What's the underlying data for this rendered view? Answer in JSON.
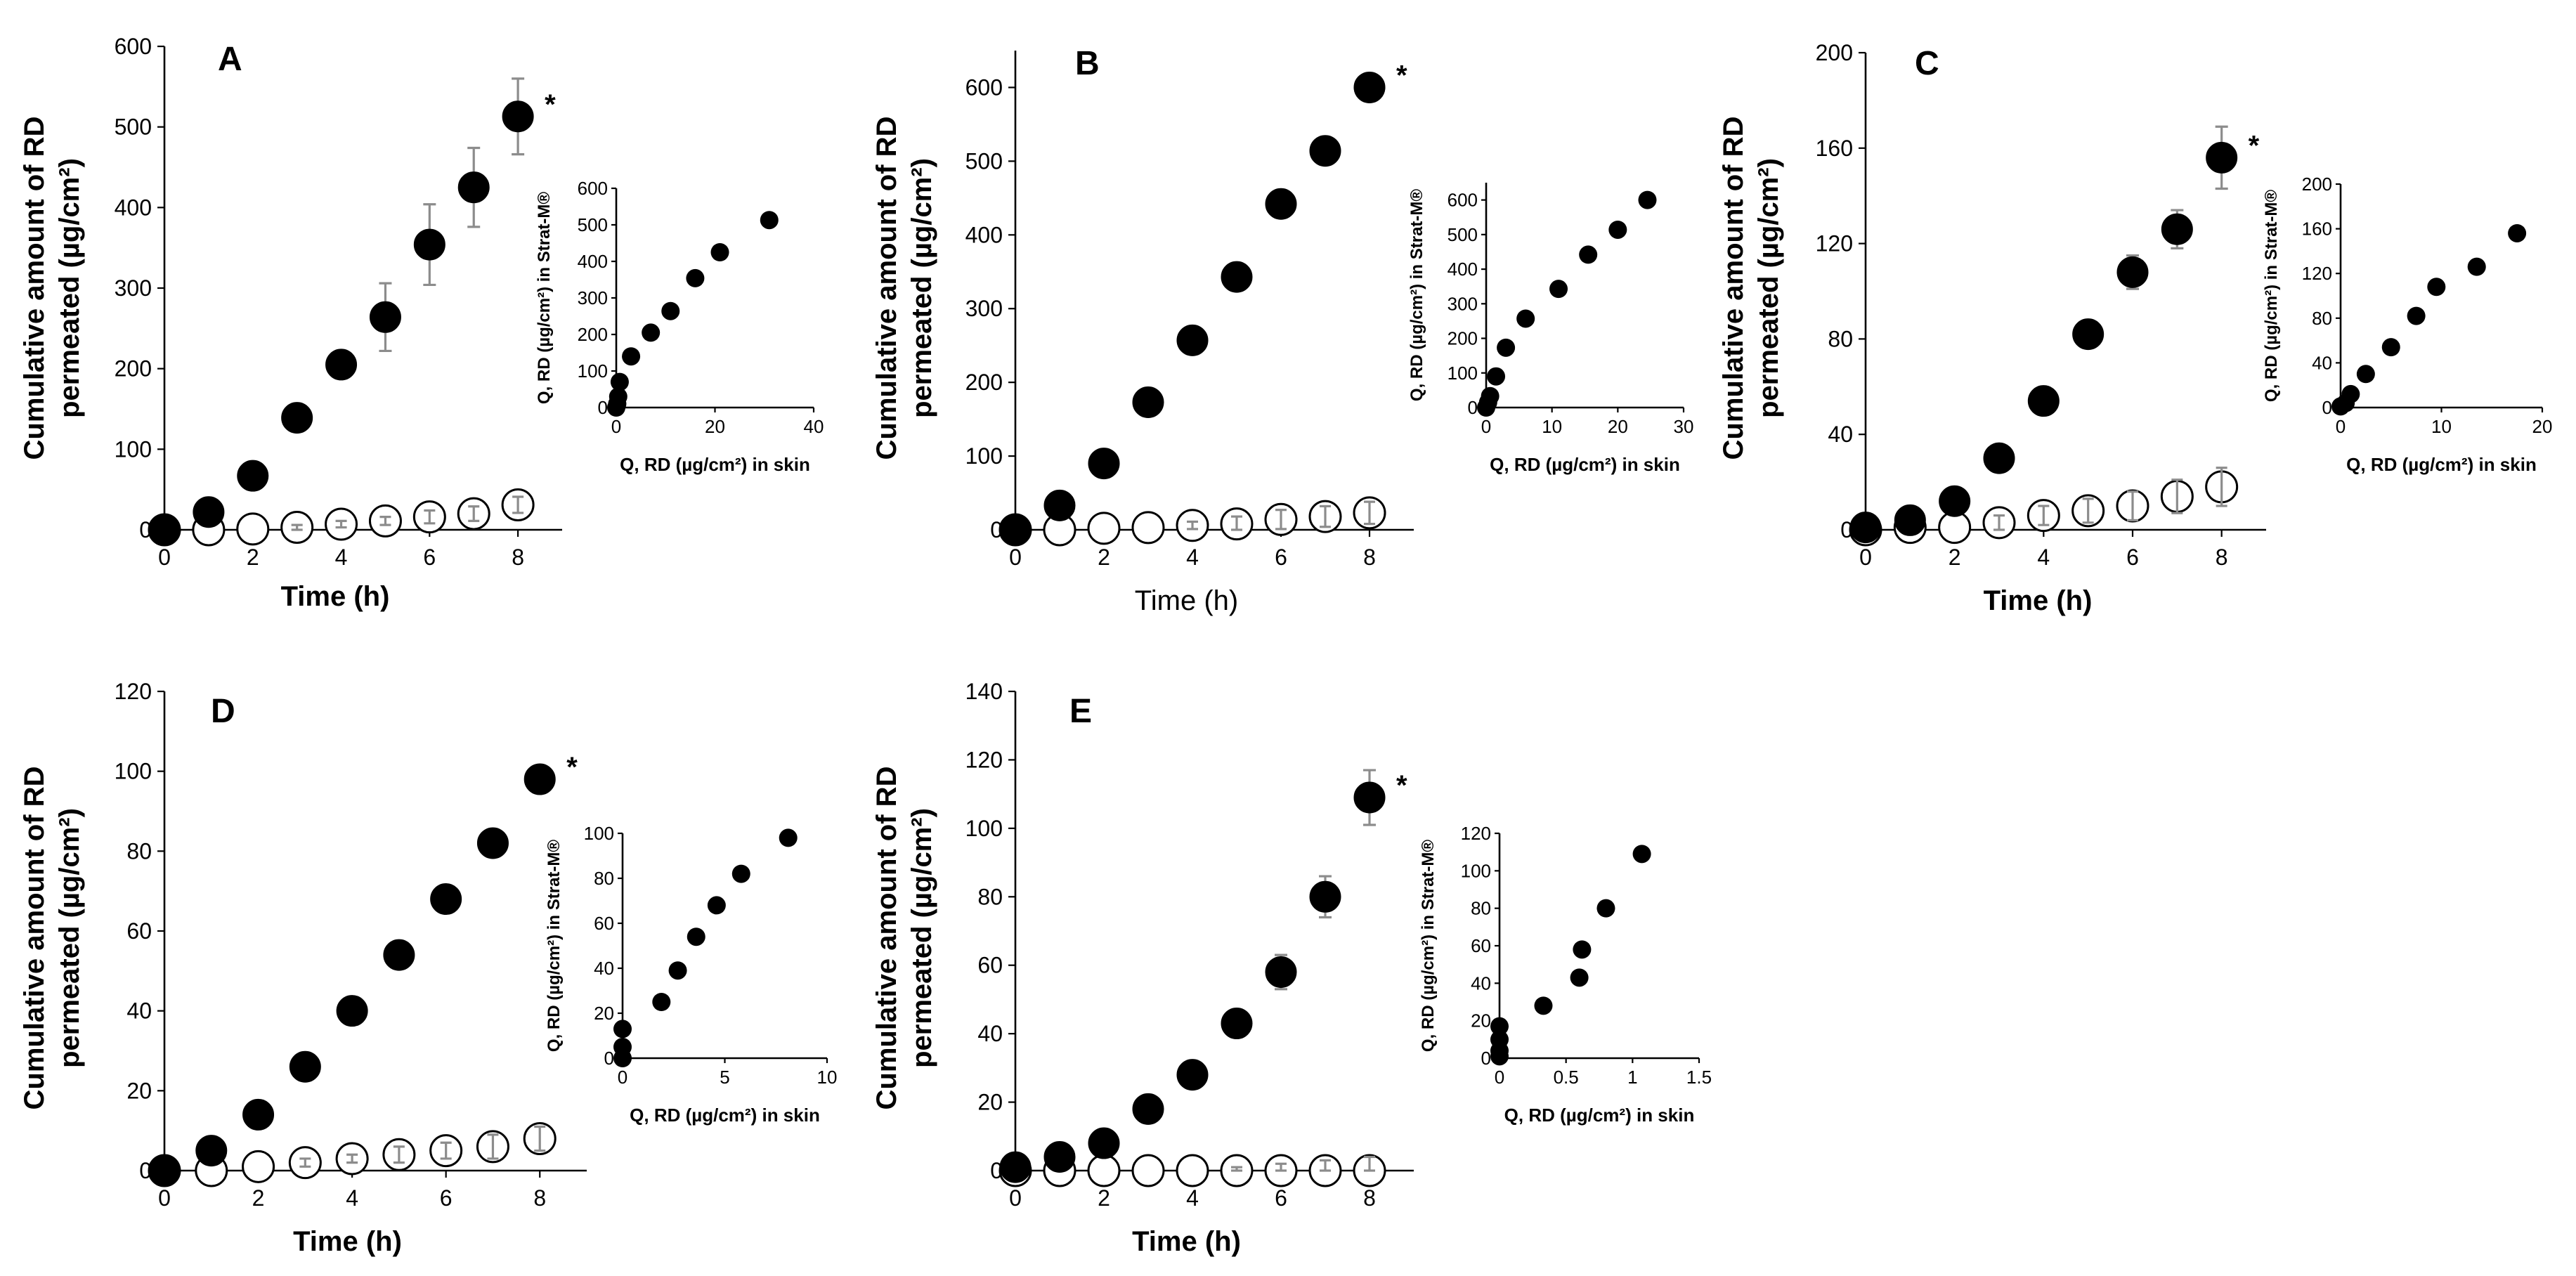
{
  "chart_data": [
    {
      "type": "scatter",
      "panel_label": "A",
      "ylabel_line1": "Cumulative amount of RD",
      "ylabel_line2": "permeated (µg/cm²)",
      "xlabel": "Time (h)",
      "xlabel_bold": true,
      "xlim": [
        0,
        9
      ],
      "ylim": [
        0,
        600
      ],
      "xticks": [
        0,
        2,
        4,
        6,
        8
      ],
      "yticks": [
        0,
        100,
        200,
        300,
        400,
        500,
        600
      ],
      "annotation": "*",
      "series": [
        {
          "name": "filled",
          "x": [
            0,
            1,
            2,
            3,
            4,
            5,
            6,
            7,
            8
          ],
          "y": [
            0,
            22,
            67,
            139,
            205,
            264,
            354,
            425,
            513
          ],
          "err": [
            0,
            3,
            4,
            5,
            13,
            42,
            50,
            49,
            47
          ]
        },
        {
          "name": "open",
          "x": [
            0,
            1,
            2,
            3,
            4,
            5,
            6,
            7,
            8
          ],
          "y": [
            0,
            0,
            1,
            3,
            7,
            11,
            16,
            20,
            31
          ],
          "err": [
            0,
            0,
            0,
            3,
            4,
            5,
            8,
            9,
            10
          ]
        }
      ],
      "inset": {
        "xlabel": "Q, RD (µg/cm²) in skin",
        "ylabel": "Q, RD (µg/cm²) in Strat-M®",
        "xlim": [
          0,
          40
        ],
        "ylim": [
          0,
          600
        ],
        "xticks": [
          0,
          20,
          40
        ],
        "yticks": [
          0,
          100,
          200,
          300,
          400,
          500,
          600
        ],
        "x": [
          0,
          0.2,
          0.4,
          0.7,
          3,
          7,
          11,
          16,
          21,
          31
        ],
        "y": [
          0,
          10,
          30,
          70,
          140,
          205,
          264,
          354,
          425,
          513
        ]
      }
    },
    {
      "type": "scatter",
      "panel_label": "B",
      "ylabel_line1": "Cumulative amount of RD",
      "ylabel_line2": "permeated (µg/cm²)",
      "xlabel": "Time (h)",
      "xlabel_bold": false,
      "xlim": [
        0,
        9
      ],
      "ylim": [
        0,
        650
      ],
      "xticks": [
        0,
        2,
        4,
        6,
        8
      ],
      "yticks": [
        0,
        100,
        200,
        300,
        400,
        500,
        600
      ],
      "annotation": "*",
      "series": [
        {
          "name": "filled",
          "x": [
            0,
            1,
            2,
            3,
            4,
            5,
            6,
            7,
            8
          ],
          "y": [
            0,
            33,
            90,
            173,
            257,
            343,
            442,
            514,
            600
          ],
          "err": [
            0,
            0,
            0,
            0,
            0,
            0,
            0,
            0,
            0
          ]
        },
        {
          "name": "open",
          "x": [
            0,
            1,
            2,
            3,
            4,
            5,
            6,
            7,
            8
          ],
          "y": [
            0,
            0,
            2,
            3,
            6,
            8,
            14,
            18,
            23
          ],
          "err": [
            0,
            0,
            0,
            0,
            5,
            10,
            13,
            14,
            15
          ]
        }
      ],
      "inset": {
        "xlabel": "Q, RD (µg/cm²) in skin",
        "ylabel": "Q, RD (µg/cm²) in Strat-M®",
        "xlim": [
          0,
          30
        ],
        "ylim": [
          0,
          650
        ],
        "xticks": [
          0,
          10,
          20,
          30
        ],
        "yticks": [
          0,
          100,
          200,
          300,
          400,
          500,
          600
        ],
        "x": [
          0,
          0.3,
          0.6,
          1.5,
          3,
          6,
          11,
          15.5,
          20,
          24.5
        ],
        "y": [
          0,
          15,
          33,
          90,
          173,
          257,
          343,
          442,
          514,
          600
        ]
      }
    },
    {
      "type": "scatter",
      "panel_label": "C",
      "ylabel_line1": "Cumulative amount of RD",
      "ylabel_line2": "permeated (µg/cm²)",
      "xlabel": "Time (h)",
      "xlabel_bold": true,
      "xlim": [
        0,
        9
      ],
      "ylim": [
        0,
        200
      ],
      "xticks": [
        0,
        2,
        4,
        6,
        8
      ],
      "yticks": [
        0,
        40,
        80,
        120,
        160,
        200
      ],
      "annotation": "*",
      "series": [
        {
          "name": "filled",
          "x": [
            0,
            1,
            2,
            3,
            4,
            5,
            6,
            7,
            8
          ],
          "y": [
            1,
            4,
            12,
            30,
            54,
            82,
            108,
            126,
            156
          ],
          "err": [
            0,
            0,
            0,
            2,
            2,
            2,
            7,
            8,
            13
          ]
        },
        {
          "name": "open",
          "x": [
            0,
            1,
            2,
            3,
            4,
            5,
            6,
            7,
            8
          ],
          "y": [
            0,
            1,
            1,
            3,
            6,
            8,
            10,
            14,
            18
          ],
          "err": [
            0,
            0,
            0,
            3,
            4,
            5,
            6,
            7,
            8
          ]
        }
      ],
      "inset": {
        "xlabel": "Q, RD (µg/cm²) in skin",
        "ylabel": "Q, RD (µg/cm²) in Strat-M®",
        "xlim": [
          0,
          20
        ],
        "ylim": [
          0,
          200
        ],
        "xticks": [
          0,
          10,
          20
        ],
        "yticks": [
          0,
          40,
          80,
          120,
          160,
          200
        ],
        "x": [
          0,
          0.5,
          1,
          2.5,
          5,
          7.5,
          9.5,
          13.5,
          17.5
        ],
        "y": [
          1,
          4,
          12,
          30,
          54,
          82,
          108,
          126,
          156
        ]
      }
    },
    {
      "type": "scatter",
      "panel_label": "D",
      "ylabel_line1": "Cumulative amount of RD",
      "ylabel_line2": "permeated (µg/cm²)",
      "xlabel": "Time (h)",
      "xlabel_bold": true,
      "xlim": [
        0,
        9
      ],
      "ylim": [
        0,
        120
      ],
      "xticks": [
        0,
        2,
        4,
        6,
        8
      ],
      "yticks": [
        0,
        20,
        40,
        60,
        80,
        100,
        120
      ],
      "annotation": "*",
      "series": [
        {
          "name": "filled",
          "x": [
            0,
            1,
            2,
            3,
            4,
            5,
            6,
            7,
            8
          ],
          "y": [
            0,
            5,
            14,
            26,
            40,
            54,
            68,
            82,
            98
          ],
          "err": [
            0,
            0,
            0,
            0,
            0,
            0,
            0,
            3,
            2
          ]
        },
        {
          "name": "open",
          "x": [
            0,
            1,
            2,
            3,
            4,
            5,
            6,
            7,
            8
          ],
          "y": [
            0,
            0,
            1,
            2,
            3,
            4,
            5,
            6,
            8
          ],
          "err": [
            0,
            0,
            0,
            1,
            1,
            2,
            2,
            3,
            3
          ]
        }
      ],
      "inset": {
        "xlabel": "Q, RD (µg/cm²) in skin",
        "ylabel": "Q, RD (µg/cm²) in Strat-M®",
        "xlim": [
          0,
          10
        ],
        "ylim": [
          0,
          100
        ],
        "xticks": [
          0,
          5,
          10
        ],
        "yticks": [
          0,
          20,
          40,
          60,
          80,
          100
        ],
        "x": [
          0,
          0,
          0,
          1.9,
          2.7,
          3.6,
          4.6,
          5.8,
          8.1
        ],
        "y": [
          0,
          5,
          13,
          25,
          39,
          54,
          68,
          82,
          98
        ]
      }
    },
    {
      "type": "scatter",
      "panel_label": "E",
      "ylabel_line1": "Cumulative amount of RD",
      "ylabel_line2": "permeated (µg/cm²)",
      "xlabel": "Time (h)",
      "xlabel_bold": true,
      "xlim": [
        0,
        9
      ],
      "ylim": [
        0,
        140
      ],
      "xticks": [
        0,
        2,
        4,
        6,
        8
      ],
      "yticks": [
        0,
        20,
        40,
        60,
        80,
        100,
        120,
        140
      ],
      "annotation": "*",
      "series": [
        {
          "name": "filled",
          "x": [
            0,
            1,
            2,
            3,
            4,
            5,
            6,
            7,
            8
          ],
          "y": [
            1,
            4,
            8,
            18,
            28,
            43,
            58,
            80,
            109
          ],
          "err": [
            0,
            0,
            0,
            0,
            0,
            0,
            5,
            6,
            8
          ]
        },
        {
          "name": "open",
          "x": [
            0,
            1,
            2,
            3,
            4,
            5,
            6,
            7,
            8
          ],
          "y": [
            0,
            0,
            0,
            0,
            0,
            0,
            0,
            0,
            0
          ],
          "err": [
            0,
            0,
            0,
            0,
            0,
            1,
            2,
            3,
            4
          ]
        }
      ],
      "inset": {
        "xlabel": "Q, RD (µg/cm²) in skin",
        "ylabel": "Q, RD (µg/cm²) in Strat-M®",
        "xlim": [
          0,
          1.5
        ],
        "ylim": [
          0,
          120
        ],
        "xticks": [
          0,
          0.5,
          1,
          1.5
        ],
        "yticks": [
          0,
          20,
          40,
          60,
          80,
          100,
          120
        ],
        "x": [
          0,
          0,
          0,
          0,
          0.33,
          0.6,
          0.62,
          0.8,
          1.07
        ],
        "y": [
          1,
          4,
          10,
          17,
          28,
          43,
          58,
          80,
          109
        ]
      }
    }
  ]
}
